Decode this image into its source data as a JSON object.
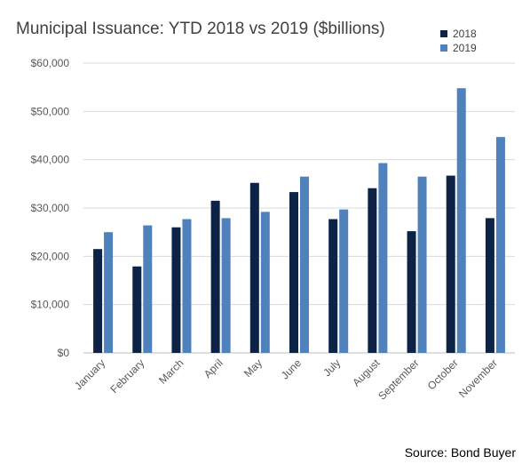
{
  "chart_data": {
    "type": "bar",
    "title": "Municipal Issuance: YTD 2018 vs 2019 ($billions)",
    "categories": [
      "January",
      "February",
      "March",
      "April",
      "May",
      "June",
      "July",
      "August",
      "September",
      "October",
      "November"
    ],
    "series": [
      {
        "name": "2018",
        "color": "#0d2346",
        "values": [
          21500,
          17900,
          26000,
          31500,
          35200,
          33300,
          27700,
          34100,
          25200,
          36700,
          27900
        ]
      },
      {
        "name": "2019",
        "color": "#4f81bd",
        "values": [
          25000,
          26400,
          27700,
          27900,
          29200,
          36500,
          29700,
          39300,
          36500,
          54800,
          44700
        ]
      }
    ],
    "ylim": [
      0,
      60000
    ],
    "yticks": [
      "$0",
      "$10,000",
      "$20,000",
      "$30,000",
      "$40,000",
      "$50,000",
      "$60,000"
    ],
    "grid": true,
    "legend_position": "top-right",
    "source": "Source: Bond Buyer"
  }
}
